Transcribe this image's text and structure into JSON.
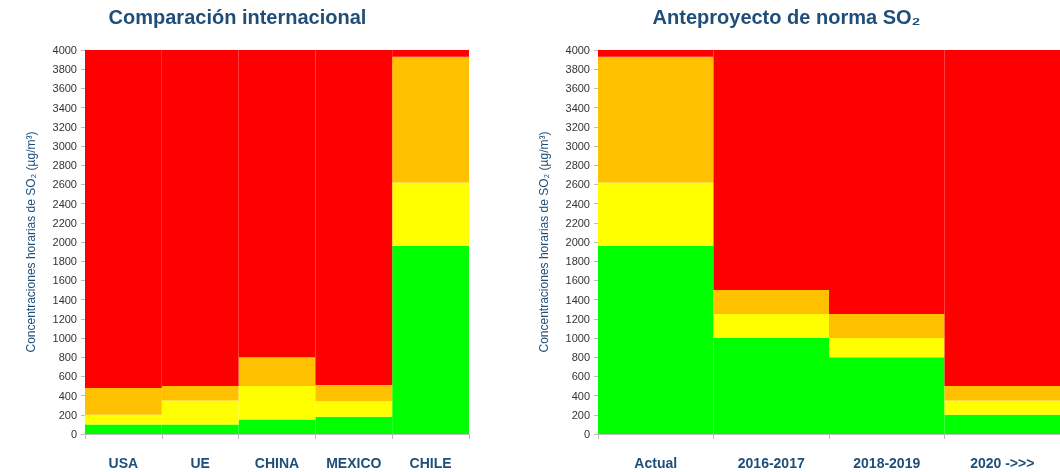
{
  "chart_data": [
    {
      "type": "bar",
      "title": "Comparación internacional",
      "ylabel": "Concentraciones horarias de SO₂ (µg/m³)",
      "categories": [
        "USA",
        "UE",
        "CHINA",
        "MEXICO",
        "CHILE"
      ],
      "stacked": true,
      "ylim": [
        0,
        4000
      ],
      "yticks": [
        0,
        200,
        400,
        600,
        800,
        1000,
        1200,
        1400,
        1600,
        1800,
        2000,
        2200,
        2400,
        2600,
        2800,
        3000,
        3200,
        3400,
        3600,
        3800,
        4000
      ],
      "grid": false,
      "series": [
        {
          "color": "#00ff00",
          "values": [
            100,
            100,
            150,
            180,
            1960
          ]
        },
        {
          "color": "#ffff00",
          "values": [
            100,
            250,
            350,
            160,
            660
          ]
        },
        {
          "color": "#ffc000",
          "values": [
            280,
            150,
            300,
            170,
            1310
          ]
        },
        {
          "color": "#ff0000",
          "values": [
            3520,
            3500,
            3200,
            3490,
            70
          ]
        }
      ]
    },
    {
      "type": "bar",
      "title": "Anteproyecto de norma SO₂",
      "ylabel": "Concentraciones horarias de SO₂ (µg/m³)",
      "categories": [
        "Actual",
        "2016-2017",
        "2018-2019",
        "2020 ->>>"
      ],
      "stacked": true,
      "ylim": [
        0,
        4000
      ],
      "yticks": [
        0,
        200,
        400,
        600,
        800,
        1000,
        1200,
        1400,
        1600,
        1800,
        2000,
        2200,
        2400,
        2600,
        2800,
        3000,
        3200,
        3400,
        3600,
        3800,
        4000
      ],
      "grid": false,
      "series": [
        {
          "color": "#00ff00",
          "values": [
            1960,
            1000,
            800,
            200
          ]
        },
        {
          "color": "#ffff00",
          "values": [
            660,
            250,
            200,
            150
          ]
        },
        {
          "color": "#ffc000",
          "values": [
            1310,
            250,
            250,
            150
          ]
        },
        {
          "color": "#ff0000",
          "values": [
            70,
            2500,
            2750,
            3500
          ]
        }
      ]
    }
  ]
}
